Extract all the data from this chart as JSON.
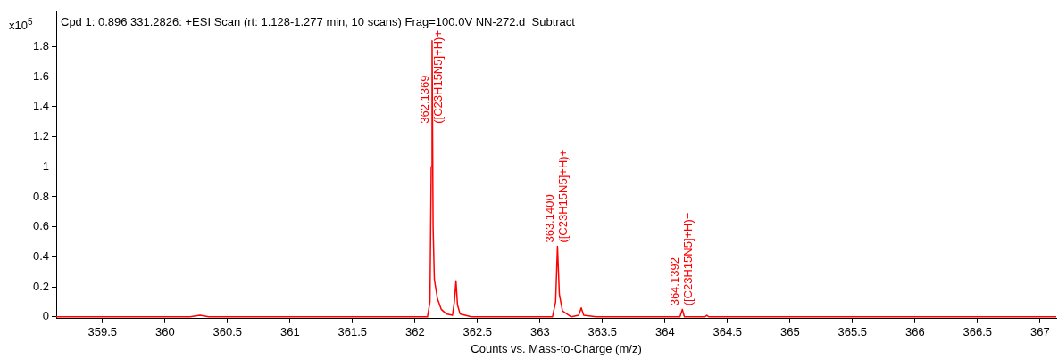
{
  "chart_data": {
    "type": "line",
    "title": "Cpd 1: 0.896 331.2826: +ESI Scan (rt: 1.128-1.277 min, 10 scans) Frag=100.0V NN-272.d  Subtract",
    "xlabel": "Counts vs. Mass-to-Charge (m/z)",
    "ylabel": "x10$^{5}$",
    "series": [
      {
        "color": "#ff0000",
        "x": [
          359.13,
          360.2,
          360.28,
          360.35,
          362.1,
          362.12,
          362.13,
          362.1369,
          362.145,
          362.155,
          362.18,
          362.21,
          362.25,
          362.3,
          362.315,
          362.328,
          362.34,
          362.36,
          362.45,
          363.1,
          363.125,
          363.14,
          363.155,
          363.18,
          363.25,
          363.31,
          363.33,
          363.35,
          363.45,
          364.12,
          364.139,
          364.155,
          364.32,
          364.335,
          364.35,
          367.13
        ],
        "values": [
          0,
          0,
          0.01,
          0,
          0,
          0.1,
          1.0,
          1.84,
          0.6,
          0.25,
          0.12,
          0.05,
          0.02,
          0.01,
          0.1,
          0.24,
          0.08,
          0.02,
          0,
          0,
          0.1,
          0.47,
          0.15,
          0.04,
          0,
          0.01,
          0.06,
          0.01,
          0,
          0,
          0.05,
          0,
          0,
          0.01,
          0,
          0
        ]
      }
    ],
    "annotations": [
      {
        "text": "362.1369\n([C23H15N5]+H)+",
        "x": 362.1369,
        "y": 1.84
      },
      {
        "text": "363.1400\n([C23H15N5]+H)+",
        "x": 363.14,
        "y": 0.47
      },
      {
        "text": "364.1392\n([C23H15N5]+H)+",
        "x": 364.139,
        "y": 0.05
      }
    ],
    "xlim": [
      359.13,
      367.13
    ],
    "xticks": [
      359.5,
      360,
      360.5,
      361,
      361.5,
      362,
      362.5,
      363,
      363.5,
      364,
      364.5,
      365,
      365.5,
      366,
      366.5,
      367
    ],
    "ylim": [
      -0.012,
      2.04
    ],
    "yticks": [
      0,
      0.2,
      0.4,
      0.6,
      0.8,
      1,
      1.2,
      1.4,
      1.6,
      1.8
    ],
    "grid": false,
    "legend": false,
    "marker": "none",
    "line_style": "solid"
  }
}
